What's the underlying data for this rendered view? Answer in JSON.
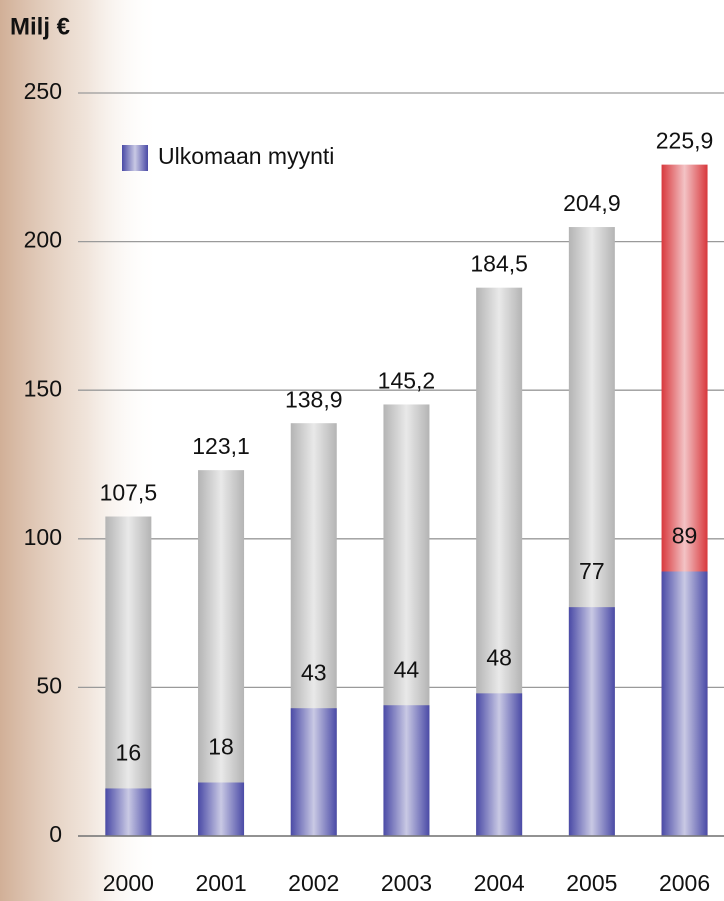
{
  "chart_data": {
    "type": "bar",
    "title": "Milj €",
    "categories": [
      "2000",
      "2001",
      "2002",
      "2003",
      "2004",
      "2005",
      "2006"
    ],
    "series": [
      {
        "values": [
          107.5,
          123.1,
          138.9,
          145.2,
          184.5,
          204.9,
          225.9
        ],
        "value_labels": [
          "107,5",
          "123,1",
          "138,9",
          "145,2",
          "184,5",
          "204,9",
          "225,9"
        ],
        "colors": [
          "#b4b4b4",
          "#b4b4b4",
          "#b4b4b4",
          "#b4b4b4",
          "#b4b4b4",
          "#b4b4b4",
          "#d8383c"
        ]
      },
      {
        "name": "Ulkomaan myynti",
        "color": "#4a4aa6",
        "values": [
          16,
          18,
          43,
          44,
          48,
          77,
          89
        ]
      }
    ],
    "ylim": [
      0,
      250
    ],
    "yticks": [
      0,
      50,
      100,
      150,
      200,
      250
    ],
    "grid": true,
    "legend": "top-left"
  }
}
